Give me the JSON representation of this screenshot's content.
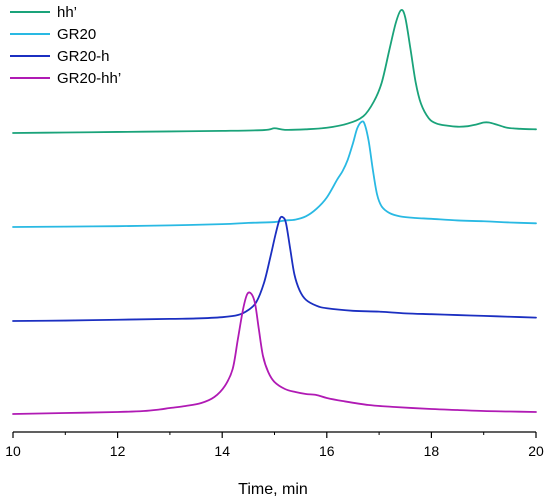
{
  "chart_data": {
    "type": "line",
    "title": "",
    "xlabel": "Time, min",
    "ylabel": "",
    "xlim": [
      10,
      20
    ],
    "xticks": [
      10,
      12,
      14,
      16,
      18,
      20
    ],
    "grid": false,
    "legend_position": "top-left",
    "series": [
      {
        "name": "hh’",
        "color": "#1aa37a",
        "baseline": 0.0,
        "points": [
          [
            10.0,
            0.0
          ],
          [
            11.0,
            0.005
          ],
          [
            12.0,
            0.01
          ],
          [
            13.0,
            0.015
          ],
          [
            14.0,
            0.02
          ],
          [
            14.8,
            0.028
          ],
          [
            15.0,
            0.045
          ],
          [
            15.2,
            0.03
          ],
          [
            15.6,
            0.035
          ],
          [
            16.0,
            0.05
          ],
          [
            16.4,
            0.09
          ],
          [
            16.7,
            0.16
          ],
          [
            16.9,
            0.3
          ],
          [
            17.05,
            0.48
          ],
          [
            17.2,
            0.8
          ],
          [
            17.32,
            1.05
          ],
          [
            17.42,
            1.17
          ],
          [
            17.5,
            1.1
          ],
          [
            17.6,
            0.8
          ],
          [
            17.7,
            0.48
          ],
          [
            17.8,
            0.28
          ],
          [
            17.95,
            0.14
          ],
          [
            18.1,
            0.09
          ],
          [
            18.3,
            0.07
          ],
          [
            18.5,
            0.06
          ],
          [
            18.7,
            0.065
          ],
          [
            18.85,
            0.08
          ],
          [
            19.0,
            0.1
          ],
          [
            19.1,
            0.1
          ],
          [
            19.25,
            0.08
          ],
          [
            19.45,
            0.05
          ],
          [
            19.7,
            0.04
          ],
          [
            20.0,
            0.035
          ]
        ]
      },
      {
        "name": "GR20",
        "color": "#29b9e3",
        "baseline": 0.0,
        "points": [
          [
            10.0,
            0.0
          ],
          [
            11.0,
            0.005
          ],
          [
            12.0,
            0.01
          ],
          [
            13.0,
            0.02
          ],
          [
            14.0,
            0.035
          ],
          [
            14.5,
            0.05
          ],
          [
            15.0,
            0.06
          ],
          [
            15.2,
            0.08
          ],
          [
            15.4,
            0.09
          ],
          [
            15.6,
            0.13
          ],
          [
            15.8,
            0.22
          ],
          [
            16.0,
            0.36
          ],
          [
            16.2,
            0.58
          ],
          [
            16.3,
            0.68
          ],
          [
            16.4,
            0.82
          ],
          [
            16.5,
            1.02
          ],
          [
            16.58,
            1.2
          ],
          [
            16.66,
            1.28
          ],
          [
            16.72,
            1.26
          ],
          [
            16.8,
            1.05
          ],
          [
            16.88,
            0.7
          ],
          [
            16.96,
            0.4
          ],
          [
            17.05,
            0.25
          ],
          [
            17.2,
            0.17
          ],
          [
            17.4,
            0.13
          ],
          [
            17.7,
            0.11
          ],
          [
            18.0,
            0.1
          ],
          [
            18.5,
            0.08
          ],
          [
            19.0,
            0.07
          ],
          [
            19.5,
            0.055
          ],
          [
            20.0,
            0.045
          ]
        ]
      },
      {
        "name": "GR20-h",
        "color": "#1b2fc1",
        "baseline": 0.0,
        "points": [
          [
            10.0,
            0.0
          ],
          [
            11.0,
            0.005
          ],
          [
            12.0,
            0.015
          ],
          [
            13.0,
            0.025
          ],
          [
            13.5,
            0.03
          ],
          [
            14.0,
            0.045
          ],
          [
            14.3,
            0.07
          ],
          [
            14.5,
            0.13
          ],
          [
            14.65,
            0.22
          ],
          [
            14.8,
            0.45
          ],
          [
            14.92,
            0.75
          ],
          [
            15.02,
            1.02
          ],
          [
            15.1,
            1.2
          ],
          [
            15.16,
            1.22
          ],
          [
            15.22,
            1.15
          ],
          [
            15.3,
            0.85
          ],
          [
            15.38,
            0.55
          ],
          [
            15.48,
            0.36
          ],
          [
            15.6,
            0.25
          ],
          [
            15.8,
            0.18
          ],
          [
            16.0,
            0.15
          ],
          [
            16.5,
            0.12
          ],
          [
            17.0,
            0.11
          ],
          [
            17.5,
            0.09
          ],
          [
            18.0,
            0.08
          ],
          [
            18.5,
            0.07
          ],
          [
            19.0,
            0.06
          ],
          [
            19.5,
            0.05
          ],
          [
            20.0,
            0.04
          ]
        ]
      },
      {
        "name": "GR20-hh’",
        "color": "#b01ab4",
        "baseline": 0.0,
        "points": [
          [
            10.0,
            0.0
          ],
          [
            11.0,
            0.01
          ],
          [
            12.0,
            0.02
          ],
          [
            12.5,
            0.03
          ],
          [
            12.8,
            0.045
          ],
          [
            13.0,
            0.06
          ],
          [
            13.3,
            0.08
          ],
          [
            13.6,
            0.11
          ],
          [
            13.85,
            0.17
          ],
          [
            14.05,
            0.28
          ],
          [
            14.2,
            0.45
          ],
          [
            14.3,
            0.75
          ],
          [
            14.4,
            1.05
          ],
          [
            14.48,
            1.2
          ],
          [
            14.56,
            1.2
          ],
          [
            14.63,
            1.1
          ],
          [
            14.7,
            0.85
          ],
          [
            14.78,
            0.58
          ],
          [
            14.88,
            0.42
          ],
          [
            15.0,
            0.32
          ],
          [
            15.2,
            0.25
          ],
          [
            15.4,
            0.22
          ],
          [
            15.6,
            0.2
          ],
          [
            15.8,
            0.19
          ],
          [
            16.0,
            0.16
          ],
          [
            16.3,
            0.13
          ],
          [
            16.8,
            0.09
          ],
          [
            17.3,
            0.07
          ],
          [
            18.0,
            0.05
          ],
          [
            18.5,
            0.04
          ],
          [
            19.0,
            0.03
          ],
          [
            19.5,
            0.025
          ],
          [
            20.0,
            0.02
          ]
        ]
      }
    ]
  }
}
